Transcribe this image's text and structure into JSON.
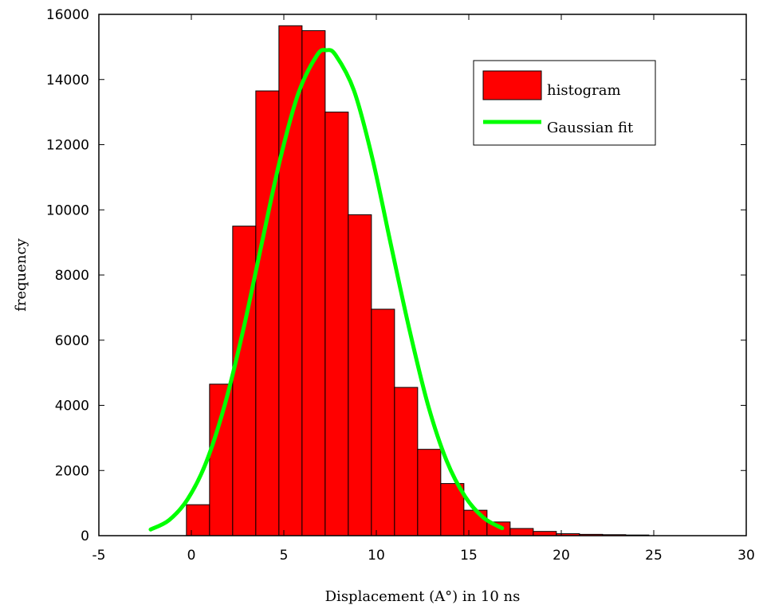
{
  "chart_data": {
    "type": "bar",
    "xlabel": "Displacement (A°) in 10 ns",
    "ylabel": "frequency",
    "xlim": [
      -5,
      30
    ],
    "ylim": [
      0,
      16000
    ],
    "xticks": [
      -5,
      0,
      5,
      10,
      15,
      20,
      25,
      30
    ],
    "yticks": [
      0,
      2000,
      4000,
      6000,
      8000,
      10000,
      12000,
      14000,
      16000
    ],
    "grid": false,
    "legend_position": "top-right",
    "colors": {
      "histogram": "#ff0000",
      "fit": "#00ff00",
      "edge": "#000000"
    },
    "series": [
      {
        "name": "histogram",
        "kind": "bar",
        "bin_width": 1.25,
        "x": [
          0.36,
          1.61,
          2.86,
          4.11,
          5.36,
          6.61,
          7.86,
          9.11,
          10.36,
          11.61,
          12.86,
          14.11,
          15.36,
          16.61,
          17.86,
          19.11,
          20.36,
          21.61,
          22.86,
          24.11
        ],
        "values": [
          950,
          4650,
          9500,
          13650,
          15650,
          15500,
          13000,
          9850,
          6950,
          4550,
          2650,
          1600,
          780,
          420,
          220,
          130,
          60,
          40,
          30,
          20
        ]
      },
      {
        "name": "Gaussian fit",
        "kind": "line",
        "x": [
          -2.2,
          -1.2,
          -0.2,
          0.8,
          1.8,
          2.8,
          3.8,
          4.8,
          5.8,
          6.8,
          7.3,
          7.8,
          8.8,
          9.8,
          10.8,
          11.8,
          12.8,
          13.8,
          14.8,
          15.8,
          16.8
        ],
        "values": [
          190,
          480,
          1120,
          2250,
          4000,
          6300,
          8950,
          11550,
          13600,
          14750,
          14900,
          14750,
          13650,
          11550,
          8900,
          6300,
          4000,
          2300,
          1200,
          550,
          230
        ]
      }
    ]
  }
}
